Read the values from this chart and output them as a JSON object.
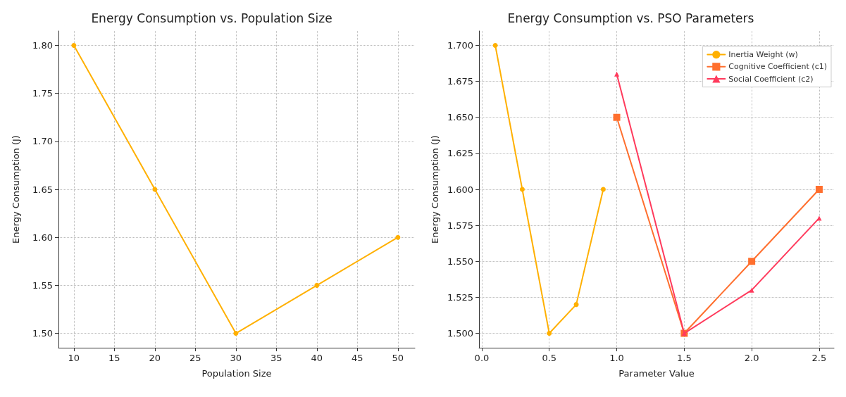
{
  "chart_data": [
    {
      "type": "line",
      "title": "Energy Consumption vs. Population Size",
      "xlabel": "Population Size",
      "ylabel": "Energy Consumption (J)",
      "x": [
        10,
        20,
        30,
        40,
        50
      ],
      "series": [
        {
          "color": "#ffb000",
          "values": [
            1.8,
            1.65,
            1.5,
            1.55,
            1.6
          ]
        }
      ],
      "xlim": [
        8.1,
        52.1
      ],
      "xticks": [
        10,
        15,
        20,
        25,
        30,
        35,
        40,
        45,
        50
      ],
      "ylim": [
        1.485,
        1.815
      ],
      "yticks": [
        {
          "value": 1.5,
          "label": "1.50"
        },
        1.55,
        {
          "value": 1.6,
          "label": "1.60"
        },
        1.65,
        {
          "value": 1.7,
          "label": "1.70"
        },
        1.75,
        {
          "value": 1.8,
          "label": "1.80"
        }
      ],
      "grid": true,
      "marker": "circle",
      "legend": false
    },
    {
      "type": "line",
      "title": "Energy Consumption vs. PSO Parameters",
      "xlabel": "Parameter Value",
      "ylabel": "Energy Consumption (J)",
      "series": [
        {
          "name": "Inertia Weight (w)",
          "color": "#ffb000",
          "marker": "circle",
          "x": [
            0.1,
            0.3,
            0.5,
            0.7,
            0.9
          ],
          "values": [
            1.7,
            1.6,
            1.5,
            1.52,
            1.6
          ]
        },
        {
          "name": "Cognitive Coefficient (c1)",
          "color": "#ff6f2e",
          "marker": "square",
          "x": [
            1.0,
            1.5,
            2.0,
            2.5
          ],
          "values": [
            1.65,
            1.5,
            1.55,
            1.6
          ]
        },
        {
          "name": "Social Coefficient (c2)",
          "color": "#ff3a5c",
          "marker": "triangle",
          "x": [
            1.0,
            1.5,
            2.0,
            2.5
          ],
          "values": [
            1.68,
            1.5,
            1.53,
            1.58
          ]
        }
      ],
      "xlim": [
        -0.02,
        2.61
      ],
      "xticks": [
        {
          "value": 0,
          "label": "0.0"
        },
        0.5,
        {
          "value": 1,
          "label": "1.0"
        },
        1.5,
        {
          "value": 2,
          "label": "2.0"
        },
        2.5
      ],
      "ylim": [
        1.49,
        1.71
      ],
      "yticks": [
        {
          "value": 1.5,
          "label": "1.500"
        },
        1.525,
        {
          "value": 1.55,
          "label": "1.550"
        },
        1.575,
        {
          "value": 1.6,
          "label": "1.600"
        },
        1.625,
        {
          "value": 1.65,
          "label": "1.650"
        },
        1.675,
        {
          "value": 1.7,
          "label": "1.700"
        }
      ],
      "grid": true,
      "legend": "top right"
    }
  ]
}
